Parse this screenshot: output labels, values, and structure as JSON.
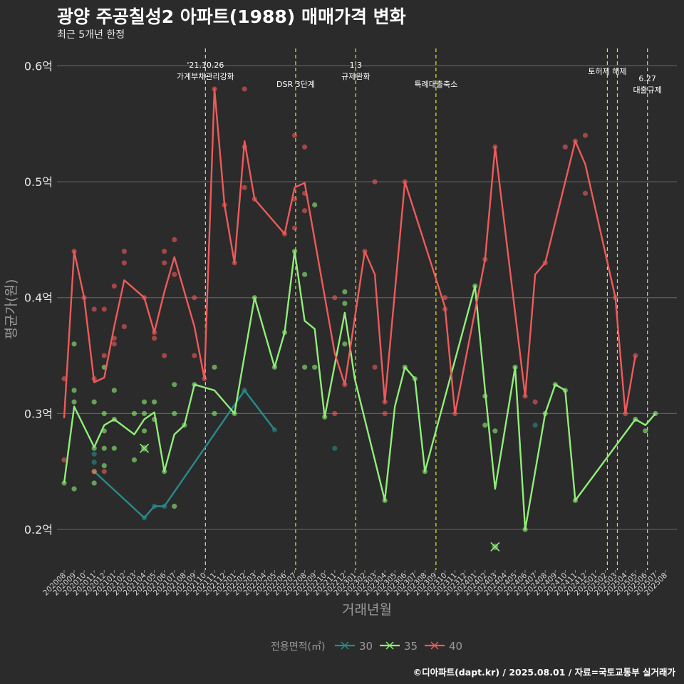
{
  "title": "광양 주공칠성2 아파트(1988) 매매가격 변화",
  "subtitle": "최근 5개년 한정",
  "caption": "©디아파트(dapt.kr) / 2025.08.01 / 자료=국토교통부 실거래가",
  "chart_data": {
    "type": "line",
    "xlabel": "거래년월",
    "ylabel": "평균가(원)",
    "ylim": [
      0.165,
      0.615
    ],
    "yticks": [
      {
        "value": 0.2,
        "label": "0.2억"
      },
      {
        "value": 0.3,
        "label": "0.3억"
      },
      {
        "value": 0.4,
        "label": "0.4억"
      },
      {
        "value": 0.5,
        "label": "0.5억"
      },
      {
        "value": 0.6,
        "label": "0.6억"
      }
    ],
    "categories": [
      "202008",
      "202009",
      "202010",
      "202011",
      "202012",
      "202101",
      "202102",
      "202103",
      "202104",
      "202105",
      "202106",
      "202107",
      "202108",
      "202109",
      "202110",
      "202111",
      "202112",
      "202201",
      "202202",
      "202203",
      "202204",
      "202205",
      "202206",
      "202207",
      "202208",
      "202209",
      "202210",
      "202211",
      "202212",
      "202301",
      "202302",
      "202303",
      "202304",
      "202305",
      "202306",
      "202307",
      "202308",
      "202309",
      "202310",
      "202311",
      "202312",
      "202401",
      "202402",
      "202403",
      "202404",
      "202405",
      "202406",
      "202407",
      "202408",
      "202409",
      "202410",
      "202411",
      "202412",
      "202501",
      "202502",
      "202503",
      "202504",
      "202505",
      "202506",
      "202507",
      "202508"
    ],
    "grid": true,
    "legend_title": "전용면적(㎡)",
    "legend_position": "bottom",
    "series": [
      {
        "name": "30",
        "color": "#2a8a8a",
        "points": [
          [
            3,
            0.25
          ],
          [
            8,
            0.21
          ],
          [
            9,
            0.22
          ],
          [
            10,
            0.22
          ],
          [
            18,
            0.32
          ],
          [
            21,
            0.286
          ]
        ],
        "dots": [
          [
            3,
            0.265
          ],
          [
            3,
            0.258
          ],
          [
            8,
            0.21
          ],
          [
            9,
            0.22
          ],
          [
            10,
            0.22
          ],
          [
            18,
            0.32
          ],
          [
            21,
            0.286
          ],
          [
            27,
            0.27
          ],
          [
            47,
            0.29
          ]
        ]
      },
      {
        "name": "35",
        "color": "#90ee78",
        "points": [
          [
            0,
            0.24
          ],
          [
            1,
            0.306
          ],
          [
            3,
            0.271
          ],
          [
            4,
            0.29
          ],
          [
            5,
            0.295
          ],
          [
            7,
            0.282
          ],
          [
            8,
            0.295
          ],
          [
            9,
            0.301
          ],
          [
            10,
            0.25
          ],
          [
            11,
            0.282
          ],
          [
            12,
            0.29
          ],
          [
            13,
            0.325
          ],
          [
            15,
            0.32
          ],
          [
            17,
            0.3
          ],
          [
            19,
            0.4
          ],
          [
            21,
            0.34
          ],
          [
            22,
            0.37
          ],
          [
            23,
            0.44
          ],
          [
            24,
            0.38
          ],
          [
            25,
            0.373
          ],
          [
            26,
            0.297
          ],
          [
            28,
            0.387
          ],
          [
            29,
            0.33
          ],
          [
            32,
            0.225
          ],
          [
            33,
            0.306
          ],
          [
            34,
            0.34
          ],
          [
            35,
            0.33
          ],
          [
            36,
            0.25
          ],
          [
            41,
            0.41
          ],
          [
            42,
            0.32
          ],
          [
            43,
            0.235
          ],
          [
            45,
            0.34
          ],
          [
            46,
            0.2
          ],
          [
            48,
            0.3
          ],
          [
            49,
            0.325
          ],
          [
            50,
            0.32
          ],
          [
            51,
            0.225
          ],
          [
            57,
            0.295
          ],
          [
            58,
            0.29
          ],
          [
            59,
            0.3
          ]
        ],
        "dots": [
          [
            0,
            0.24
          ],
          [
            1,
            0.36
          ],
          [
            1,
            0.32
          ],
          [
            1,
            0.31
          ],
          [
            1,
            0.235
          ],
          [
            3,
            0.27
          ],
          [
            3,
            0.25
          ],
          [
            3,
            0.24
          ],
          [
            3,
            0.31
          ],
          [
            4,
            0.285
          ],
          [
            4,
            0.27
          ],
          [
            4,
            0.255
          ],
          [
            4,
            0.3
          ],
          [
            4,
            0.34
          ],
          [
            5,
            0.32
          ],
          [
            5,
            0.295
          ],
          [
            5,
            0.27
          ],
          [
            7,
            0.3
          ],
          [
            7,
            0.26
          ],
          [
            8,
            0.31
          ],
          [
            8,
            0.3
          ],
          [
            8,
            0.285
          ],
          [
            9,
            0.31
          ],
          [
            9,
            0.295
          ],
          [
            10,
            0.25
          ],
          [
            11,
            0.325
          ],
          [
            11,
            0.3
          ],
          [
            11,
            0.22
          ],
          [
            12,
            0.29
          ],
          [
            13,
            0.325
          ],
          [
            15,
            0.34
          ],
          [
            15,
            0.3
          ],
          [
            17,
            0.3
          ],
          [
            19,
            0.4
          ],
          [
            21,
            0.34
          ],
          [
            22,
            0.37
          ],
          [
            23,
            0.44
          ],
          [
            24,
            0.42
          ],
          [
            24,
            0.34
          ],
          [
            25,
            0.48
          ],
          [
            25,
            0.34
          ],
          [
            26,
            0.297
          ],
          [
            28,
            0.405
          ],
          [
            28,
            0.395
          ],
          [
            28,
            0.36
          ],
          [
            32,
            0.225
          ],
          [
            34,
            0.34
          ],
          [
            35,
            0.33
          ],
          [
            36,
            0.25
          ],
          [
            41,
            0.41
          ],
          [
            42,
            0.315
          ],
          [
            42,
            0.29
          ],
          [
            43,
            0.285
          ],
          [
            45,
            0.34
          ],
          [
            46,
            0.2
          ],
          [
            48,
            0.3
          ],
          [
            49,
            0.325
          ],
          [
            50,
            0.32
          ],
          [
            51,
            0.225
          ],
          [
            57,
            0.295
          ],
          [
            58,
            0.285
          ],
          [
            59,
            0.3
          ]
        ],
        "crosses": [
          [
            8,
            0.27
          ],
          [
            43,
            0.185
          ]
        ]
      },
      {
        "name": "40",
        "color": "#ef5a5a",
        "points": [
          [
            0,
            0.296
          ],
          [
            1,
            0.44
          ],
          [
            2,
            0.4
          ],
          [
            3,
            0.327
          ],
          [
            4,
            0.331
          ],
          [
            5,
            0.375
          ],
          [
            6,
            0.415
          ],
          [
            8,
            0.4
          ],
          [
            9,
            0.37
          ],
          [
            10,
            0.405
          ],
          [
            11,
            0.435
          ],
          [
            13,
            0.375
          ],
          [
            14,
            0.33
          ],
          [
            15,
            0.58
          ],
          [
            16,
            0.48
          ],
          [
            17,
            0.43
          ],
          [
            18,
            0.535
          ],
          [
            19,
            0.485
          ],
          [
            22,
            0.455
          ],
          [
            23,
            0.495
          ],
          [
            24,
            0.499
          ],
          [
            27,
            0.352
          ],
          [
            28,
            0.325
          ],
          [
            30,
            0.44
          ],
          [
            31,
            0.42
          ],
          [
            32,
            0.31
          ],
          [
            34,
            0.5
          ],
          [
            38,
            0.392
          ],
          [
            39,
            0.3
          ],
          [
            42,
            0.433
          ],
          [
            43,
            0.53
          ],
          [
            46,
            0.315
          ],
          [
            47,
            0.42
          ],
          [
            48,
            0.43
          ],
          [
            51,
            0.535
          ],
          [
            52,
            0.515
          ],
          [
            55,
            0.4
          ],
          [
            56,
            0.3
          ],
          [
            57,
            0.35
          ]
        ],
        "dots": [
          [
            0,
            0.33
          ],
          [
            0,
            0.26
          ],
          [
            1,
            0.44
          ],
          [
            2,
            0.4
          ],
          [
            3,
            0.39
          ],
          [
            3,
            0.33
          ],
          [
            3,
            0.25
          ],
          [
            4,
            0.39
          ],
          [
            4,
            0.35
          ],
          [
            4,
            0.25
          ],
          [
            5,
            0.41
          ],
          [
            5,
            0.365
          ],
          [
            5,
            0.36
          ],
          [
            6,
            0.44
          ],
          [
            6,
            0.43
          ],
          [
            6,
            0.375
          ],
          [
            8,
            0.4
          ],
          [
            9,
            0.37
          ],
          [
            9,
            0.365
          ],
          [
            10,
            0.44
          ],
          [
            10,
            0.43
          ],
          [
            10,
            0.35
          ],
          [
            11,
            0.45
          ],
          [
            11,
            0.42
          ],
          [
            13,
            0.4
          ],
          [
            13,
            0.35
          ],
          [
            14,
            0.33
          ],
          [
            15,
            0.58
          ],
          [
            16,
            0.48
          ],
          [
            17,
            0.43
          ],
          [
            18,
            0.58
          ],
          [
            18,
            0.53
          ],
          [
            18,
            0.495
          ],
          [
            19,
            0.485
          ],
          [
            22,
            0.455
          ],
          [
            23,
            0.54
          ],
          [
            23,
            0.485
          ],
          [
            23,
            0.46
          ],
          [
            24,
            0.53
          ],
          [
            24,
            0.49
          ],
          [
            24,
            0.475
          ],
          [
            27,
            0.4
          ],
          [
            27,
            0.3
          ],
          [
            28,
            0.325
          ],
          [
            30,
            0.44
          ],
          [
            31,
            0.5
          ],
          [
            31,
            0.34
          ],
          [
            32,
            0.31
          ],
          [
            32,
            0.3
          ],
          [
            34,
            0.5
          ],
          [
            38,
            0.4
          ],
          [
            38,
            0.39
          ],
          [
            39,
            0.3
          ],
          [
            42,
            0.433
          ],
          [
            43,
            0.53
          ],
          [
            46,
            0.315
          ],
          [
            47,
            0.31
          ],
          [
            48,
            0.43
          ],
          [
            50,
            0.53
          ],
          [
            51,
            0.535
          ],
          [
            52,
            0.54
          ],
          [
            52,
            0.49
          ],
          [
            55,
            0.4
          ],
          [
            56,
            0.3
          ],
          [
            57,
            0.35
          ]
        ]
      }
    ],
    "events": [
      {
        "index": 14.1,
        "lines": [
          "'21.10.26",
          "가계부채관리강화"
        ]
      },
      {
        "index": 23.1,
        "lines": [
          "DSR 3단계"
        ]
      },
      {
        "index": 29.1,
        "lines": [
          "1.3",
          "규제완화"
        ]
      },
      {
        "index": 37.1,
        "lines": [
          "특례대출축소"
        ]
      },
      {
        "index": 54.2,
        "lines": [
          "토허제 해제"
        ]
      },
      {
        "index": 55.2,
        "lines": []
      },
      {
        "index": 58.2,
        "lines": [
          "6.27",
          "대출규제"
        ]
      }
    ]
  }
}
